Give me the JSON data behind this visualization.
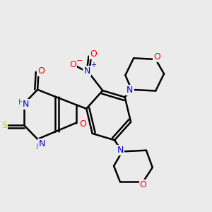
{
  "background_color": "#ebebeb",
  "bond_color": "#000000",
  "atom_colors": {
    "O": "#ff0000",
    "N": "#0000cc",
    "S": "#cccc00",
    "NH": "#008080",
    "C": "#000000"
  },
  "figsize": [
    3.0,
    3.0
  ],
  "dpi": 100
}
